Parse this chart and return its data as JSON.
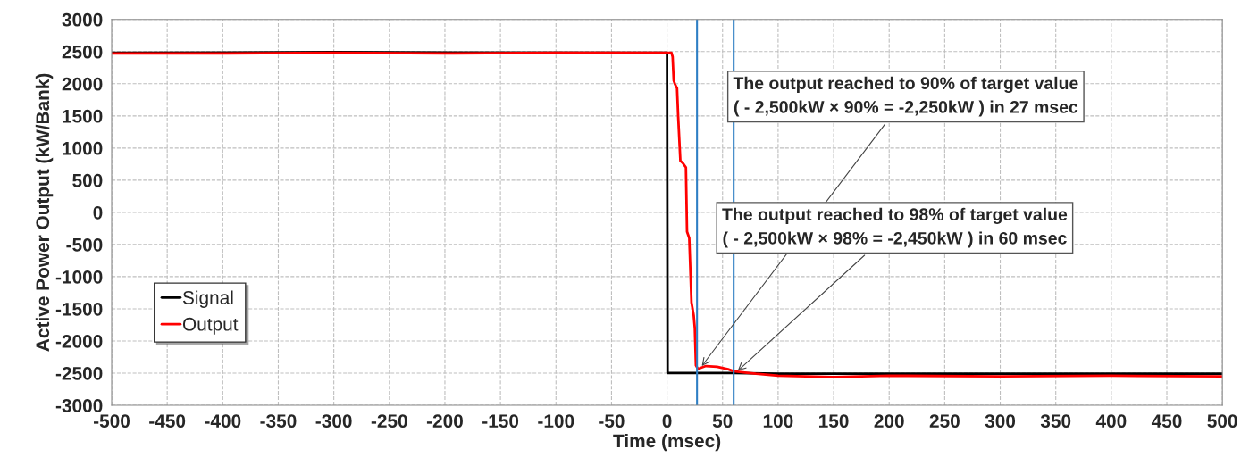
{
  "chart_data": {
    "type": "line",
    "xlabel": "Time (msec)",
    "ylabel": "Active Power Output (kW/Bank)",
    "series": [
      {
        "name": "Signal",
        "color": "#000000",
        "x": [
          -500,
          -300,
          0,
          0.5,
          30,
          60,
          100,
          200,
          300,
          400,
          500
        ],
        "values": [
          2480,
          2490,
          2480,
          -2500,
          -2500,
          -2500,
          -2510,
          -2510,
          -2510,
          -2510,
          -2510
        ]
      },
      {
        "name": "Output",
        "color": "#ff0000",
        "x": [
          -500,
          -400,
          -300,
          -200,
          -100,
          0,
          4,
          5,
          6,
          7,
          9,
          10,
          12,
          14,
          17,
          18,
          20,
          22,
          24,
          25,
          26,
          28,
          30,
          35,
          45,
          55,
          60,
          70,
          80,
          100,
          150,
          200,
          300,
          400,
          500
        ],
        "values": [
          2470,
          2470,
          2480,
          2470,
          2480,
          2480,
          2480,
          2420,
          2050,
          2000,
          1930,
          1500,
          800,
          770,
          700,
          -300,
          -400,
          -1400,
          -1600,
          -1800,
          -2380,
          -2440,
          -2420,
          -2390,
          -2400,
          -2440,
          -2470,
          -2490,
          -2510,
          -2540,
          -2560,
          -2540,
          -2550,
          -2540,
          -2550
        ]
      }
    ],
    "ref_lines": [
      {
        "axis": "x",
        "value": 27,
        "color": "#2e7ec4"
      },
      {
        "axis": "x",
        "value": 60,
        "color": "#2e7ec4"
      }
    ],
    "annotations": [
      {
        "text": "The output reached to 90% of target value\n( - 2,500kW × 90% = -2,250kW ) in 27 msec",
        "x": 30,
        "y": -2420
      },
      {
        "text": "The output reached to 98% of target value\n( - 2,500kW × 98% = -2,450kW ) in 60 msec",
        "x": 62,
        "y": -2490
      }
    ],
    "xlim": [
      -500,
      500
    ],
    "xticks": [
      -500,
      -450,
      -400,
      -350,
      -300,
      -250,
      -200,
      -150,
      -100,
      -50,
      0,
      50,
      100,
      150,
      200,
      250,
      300,
      350,
      400,
      450,
      500
    ],
    "ylim": [
      -3000,
      3000
    ],
    "yticks": [
      -3000,
      -2500,
      -2000,
      -1500,
      -1000,
      -500,
      0,
      500,
      1000,
      1500,
      2000,
      2500,
      3000
    ],
    "grid": true,
    "legend": "bottom left",
    "line_style": "solid",
    "marker": "none"
  }
}
